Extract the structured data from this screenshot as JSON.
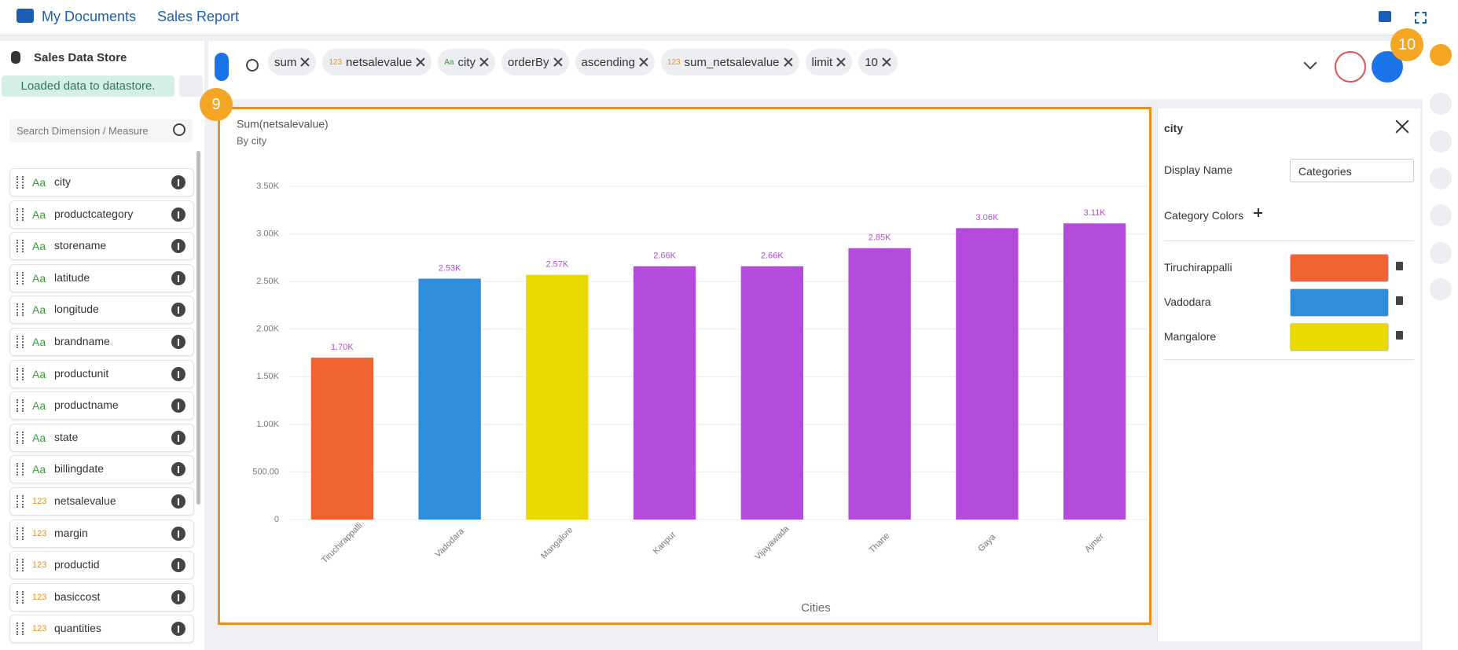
{
  "header": {
    "breadcrumb": [
      "My Documents",
      "Sales Report"
    ]
  },
  "sidebar": {
    "title": "Sales Data Store",
    "status": "Loaded data to datastore.",
    "search_placeholder": "Search Dimension / Measure",
    "fields": [
      {
        "type": "Aa",
        "name": "city"
      },
      {
        "type": "Aa",
        "name": "productcategory"
      },
      {
        "type": "Aa",
        "name": "storename"
      },
      {
        "type": "Aa",
        "name": "latitude"
      },
      {
        "type": "Aa",
        "name": "longitude"
      },
      {
        "type": "Aa",
        "name": "brandname"
      },
      {
        "type": "Aa",
        "name": "productunit"
      },
      {
        "type": "Aa",
        "name": "productname"
      },
      {
        "type": "Aa",
        "name": "state"
      },
      {
        "type": "Aa",
        "name": "billingdate"
      },
      {
        "type": "123",
        "name": "netsalevalue"
      },
      {
        "type": "123",
        "name": "margin"
      },
      {
        "type": "123",
        "name": "productid"
      },
      {
        "type": "123",
        "name": "basiccost"
      },
      {
        "type": "123",
        "name": "quantities"
      }
    ]
  },
  "query": {
    "pills": [
      {
        "text": "sum"
      },
      {
        "type": "123",
        "text": "netsalevalue"
      },
      {
        "type": "Aa",
        "text": "city"
      },
      {
        "text": "orderBy"
      },
      {
        "text": "ascending"
      },
      {
        "type": "123",
        "text": "sum_netsalevalue"
      },
      {
        "text": "limit"
      },
      {
        "text": "10"
      }
    ]
  },
  "badges": [
    "9",
    "10"
  ],
  "chart_data": {
    "type": "bar",
    "title": "Sum(netsalevalue)",
    "subtitle": "By city",
    "x_label": "Cities",
    "categories": [
      "Tiruchirappalli",
      "Vadodara",
      "Mangalore",
      "Kanpur",
      "Vijayawada",
      "Thane",
      "Gaya",
      "Ajmer"
    ],
    "values": [
      1700,
      2530,
      2570,
      2660,
      2660,
      2850,
      3060,
      3110
    ],
    "value_labels": [
      "1.70K",
      "2.53K",
      "2.57K",
      "2.66K",
      "2.66K",
      "2.85K",
      "3.06K",
      "3.11K"
    ],
    "colors": [
      "#f0622f",
      "#2e8ddc",
      "#e8d900",
      "#b44bdc",
      "#b44bdc",
      "#b44bdc",
      "#b44bdc",
      "#b44bdc"
    ],
    "ylim": [
      0,
      3500
    ],
    "yticks": [
      0,
      {
        "value": 500,
        "label": "500.00"
      },
      {
        "value": 1000,
        "label": "1.00K"
      },
      {
        "value": 1500,
        "label": "1.50K"
      },
      {
        "value": 2000,
        "label": "2.00K"
      },
      {
        "value": 2500,
        "label": "2.50K"
      },
      {
        "value": 3000,
        "label": "3.00K"
      },
      {
        "value": 3500,
        "label": "3.50K"
      }
    ],
    "grid": true
  },
  "panel": {
    "title": "city",
    "display_name_label": "Display Name",
    "display_name_value": "Categories",
    "category_colors_label": "Category Colors",
    "category_colors": [
      {
        "name": "Tiruchirappalli",
        "color": "#f0622f"
      },
      {
        "name": "Vadodara",
        "color": "#2e8ddc"
      },
      {
        "name": "Mangalore",
        "color": "#e8d900"
      }
    ]
  }
}
